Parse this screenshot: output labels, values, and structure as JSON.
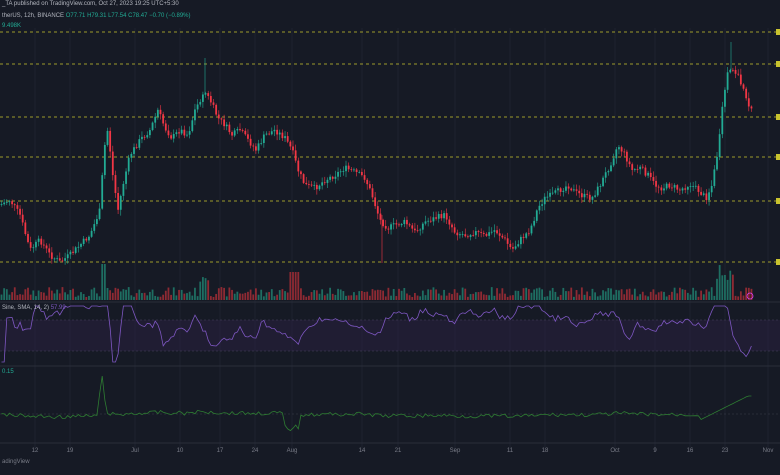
{
  "header": {
    "line1_author": "_TA published on TradingView.com, Oct 27, 2023 19:25 UTC+5:30",
    "symbol": "THERUSDT",
    "line2_prefix": "therUS, 12h, BINANCE",
    "ohlc": [
      "O77.71",
      "H79.31",
      "L77.54",
      "C78.47",
      "−0.70 (−0.89%)"
    ],
    "volume_value": "9.498K"
  },
  "rsi_label": "Sine, SMA, 14, 2)",
  "rsi_value": "57.99",
  "indicator_value": "0.15",
  "footer": "adingView",
  "x_axis_labels": [
    "12",
    "19",
    "Jul",
    "10",
    "17",
    "24",
    "Aug",
    "14",
    "21",
    "Sep",
    "11",
    "18",
    "Oct",
    "9",
    "16",
    "23",
    "Nov"
  ],
  "colors": {
    "background": "#161A25",
    "up": "#22AB94",
    "down": "#F23645",
    "level_line": "#C9C32E",
    "rsi_line": "#7E57C2",
    "indicator_line": "#2E7D32",
    "grid": "#1F2330"
  },
  "chart_data": {
    "type": "candlestick",
    "timeframe": "12h",
    "exchange": "BINANCE",
    "x_labels": [
      "12",
      "19",
      "Jul",
      "10",
      "17",
      "24",
      "Aug",
      "14",
      "21",
      "Sep",
      "11",
      "18",
      "Oct",
      "9",
      "16",
      "23",
      "Nov"
    ],
    "last_candle": {
      "open": 77.71,
      "high": 79.31,
      "low": 77.54,
      "close": 78.47,
      "change": -0.7,
      "change_pct": -0.89
    },
    "volume_last": "9.498K",
    "rsi": {
      "length": 14,
      "smoothing": "SMA",
      "last": 57.99
    },
    "indicator_last": 0.15
  }
}
